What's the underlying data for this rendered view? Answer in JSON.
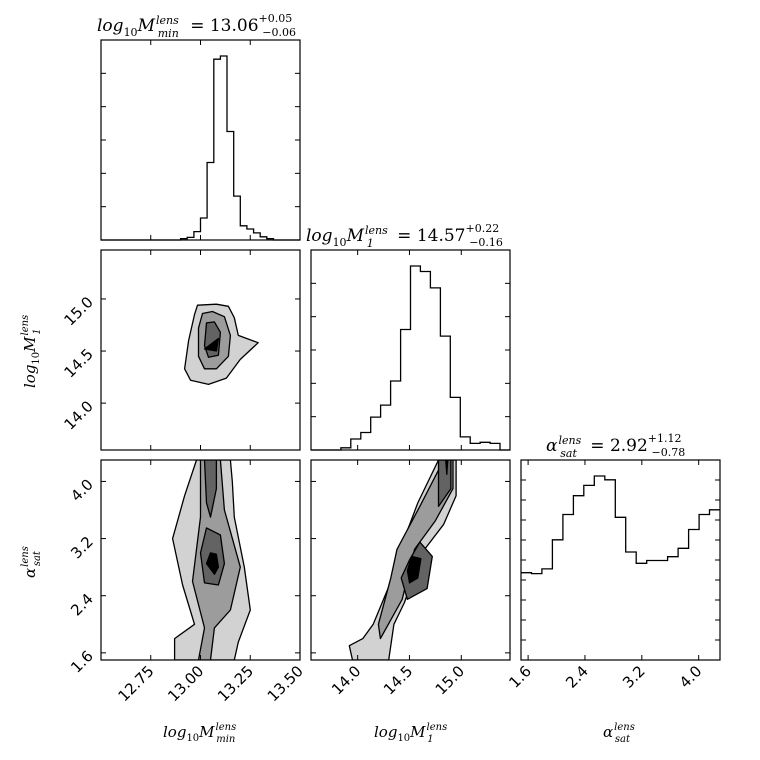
{
  "chart_data": {
    "type": "corner",
    "colors": {
      "stroke": "#000000",
      "level_1": "#d2d2d2",
      "level_2": "#9c9c9c",
      "level_3": "#636363",
      "level_4": "#000000"
    },
    "parameters": [
      {
        "id": "mmin",
        "label": {
          "base": "log",
          "base_sub": "10",
          "sym": "M",
          "sup": "lens",
          "sub": "min"
        }
      },
      {
        "id": "m1",
        "label": {
          "base": "log",
          "base_sub": "10",
          "sym": "M",
          "sup": "lens",
          "sub": "1"
        }
      },
      {
        "id": "alpha",
        "label": {
          "base": "",
          "base_sub": "",
          "sym": "α",
          "sup": "lens",
          "sub": "sat"
        }
      }
    ],
    "titles": [
      {
        "value": "13.06",
        "plus": "+0.05",
        "minus": "−0.06"
      },
      {
        "value": "14.57",
        "plus": "+0.22",
        "minus": "−0.16"
      },
      {
        "value": "2.92",
        "plus": "+1.12",
        "minus": "−0.78"
      }
    ],
    "ticks": {
      "mmin_x": [
        "12.75",
        "13.00",
        "13.25",
        "13.50"
      ],
      "m1_x": [
        "14.0",
        "14.5",
        "15.0"
      ],
      "m1_y": [
        "15.0",
        "14.5",
        "14.0"
      ],
      "alpha_x": [
        "1.6",
        "2.4",
        "3.2",
        "4.0"
      ],
      "alpha_y": [
        "4.0",
        "3.2",
        "2.4",
        "1.6"
      ]
    },
    "axis_ranges": {
      "mmin": [
        12.5,
        13.5
      ],
      "m1": [
        13.55,
        15.47
      ],
      "alpha": [
        1.5,
        4.3
      ]
    },
    "histograms": {
      "mmin": {
        "x_range": [
          12.5,
          13.5
        ],
        "counts": [
          0,
          0,
          0,
          0,
          0,
          0,
          0,
          0,
          0,
          0,
          0,
          0,
          2,
          4,
          13,
          34,
          120,
          280,
          285,
          168,
          68,
          22,
          17,
          11,
          5,
          2,
          0,
          0,
          0,
          0
        ]
      },
      "m1": {
        "x_range": [
          13.55,
          15.47
        ],
        "counts": [
          0,
          0,
          0,
          2,
          10,
          16,
          30,
          41,
          63,
          110,
          168,
          163,
          148,
          104,
          48,
          12,
          6,
          7,
          6,
          0
        ]
      },
      "alpha": {
        "x_range": [
          1.5,
          4.3
        ],
        "counts": [
          93,
          92,
          97,
          128,
          155,
          175,
          186,
          196,
          192,
          152,
          115,
          103,
          106,
          106,
          110,
          119,
          139,
          155,
          160
        ]
      }
    },
    "contour_levels": [
      {
        "level": 1,
        "panel": "m1_vs_mmin",
        "x": [
          12.985,
          12.97,
          12.94,
          12.92,
          12.95,
          13.04,
          13.13,
          13.2,
          13.29,
          13.19,
          13.17,
          13.14,
          13.08,
          12.985
        ],
        "y": [
          14.94,
          14.85,
          14.6,
          14.33,
          14.22,
          14.18,
          14.24,
          14.42,
          14.58,
          14.65,
          14.82,
          14.93,
          14.95,
          14.94
        ]
      },
      {
        "level": 2,
        "panel": "m1_vs_mmin",
        "x": [
          13.01,
          12.99,
          12.99,
          13.02,
          13.08,
          13.14,
          13.15,
          13.12,
          13.06,
          13.01
        ],
        "y": [
          14.86,
          14.72,
          14.45,
          14.33,
          14.33,
          14.45,
          14.65,
          14.83,
          14.88,
          14.86
        ]
      },
      {
        "level": 3,
        "panel": "m1_vs_mmin",
        "x": [
          13.03,
          13.02,
          13.04,
          13.09,
          13.1,
          13.07,
          13.03
        ],
        "y": [
          14.77,
          14.55,
          14.44,
          14.46,
          14.68,
          14.78,
          14.77
        ]
      },
      {
        "level": 4,
        "panel": "m1_vs_mmin",
        "x": [
          13.02,
          13.08,
          13.09,
          13.02
        ],
        "y": [
          14.52,
          14.5,
          14.62,
          14.52
        ]
      },
      {
        "level": 1,
        "panel": "alpha_vs_mmin",
        "x": [
          12.98,
          13.15,
          13.16,
          13.17,
          13.22,
          13.25,
          13.19,
          13.17,
          13.15,
          12.87,
          12.87,
          12.97,
          12.91,
          12.86,
          12.92,
          12.98
        ],
        "y": [
          4.3,
          4.3,
          4.0,
          3.5,
          2.8,
          2.2,
          1.75,
          1.5,
          1.5,
          1.5,
          1.8,
          2.0,
          2.55,
          3.2,
          3.8,
          4.3
        ]
      },
      {
        "level": 2,
        "panel": "alpha_vs_mmin",
        "x": [
          13.0,
          13.1,
          13.12,
          13.15,
          13.2,
          13.15,
          13.07,
          13.05,
          12.99,
          13.02,
          12.96,
          13.0,
          13.0
        ],
        "y": [
          4.3,
          4.3,
          3.6,
          3.3,
          2.8,
          2.2,
          1.95,
          1.5,
          1.5,
          1.95,
          2.6,
          3.5,
          4.3
        ]
      },
      {
        "level": 3,
        "panel": "alpha_vs_mmin",
        "x": [
          13.02,
          13.08,
          13.08,
          13.05,
          13.03,
          13.02
        ],
        "y": [
          4.3,
          4.3,
          3.9,
          3.5,
          3.7,
          4.3
        ]
      },
      {
        "level": 3,
        "panel": "alpha_vs_mmin",
        "x": [
          13.03,
          13.1,
          13.12,
          13.09,
          13.02,
          13.0,
          13.03
        ],
        "y": [
          3.35,
          3.25,
          2.85,
          2.55,
          2.58,
          3.0,
          3.35
        ]
      },
      {
        "level": 4,
        "panel": "alpha_vs_mmin",
        "x": [
          13.05,
          13.08,
          13.09,
          13.07,
          13.03,
          13.05
        ],
        "y": [
          3.0,
          2.98,
          2.8,
          2.7,
          2.85,
          3.0
        ]
      },
      {
        "level": 1,
        "panel": "alpha_vs_m1",
        "x": [
          14.78,
          14.95,
          14.95,
          14.83,
          14.62,
          14.45,
          14.35,
          14.3,
          14.15,
          13.95,
          13.92,
          14.05,
          14.15,
          14.35,
          14.45,
          14.58,
          14.78
        ],
        "y": [
          4.3,
          4.3,
          3.8,
          3.4,
          3.0,
          2.3,
          2.0,
          1.5,
          1.5,
          1.5,
          1.7,
          1.8,
          2.0,
          2.7,
          3.2,
          3.7,
          4.3
        ]
      },
      {
        "level": 2,
        "panel": "alpha_vs_m1",
        "x": [
          14.83,
          14.92,
          14.92,
          14.75,
          14.55,
          14.43,
          14.22,
          14.2,
          14.32,
          14.38,
          14.6,
          14.83
        ],
        "y": [
          4.3,
          4.3,
          3.9,
          3.45,
          3.05,
          2.35,
          1.8,
          2.0,
          2.65,
          3.05,
          3.65,
          4.3
        ]
      },
      {
        "level": 3,
        "panel": "alpha_vs_m1",
        "x": [
          14.78,
          14.9,
          14.9,
          14.78,
          14.78
        ],
        "y": [
          4.3,
          4.3,
          3.9,
          3.65,
          4.3
        ]
      },
      {
        "level": 3,
        "panel": "alpha_vs_m1",
        "x": [
          14.6,
          14.72,
          14.67,
          14.48,
          14.42,
          14.5,
          14.6
        ],
        "y": [
          3.15,
          2.95,
          2.5,
          2.35,
          2.65,
          2.9,
          3.15
        ]
      },
      {
        "level": 4,
        "panel": "alpha_vs_m1",
        "x": [
          14.52,
          14.61,
          14.58,
          14.5,
          14.48,
          14.52
        ],
        "y": [
          2.95,
          2.92,
          2.65,
          2.58,
          2.75,
          2.95
        ]
      },
      {
        "level": 4,
        "panel": "alpha_vs_m1",
        "x": [
          14.85,
          14.87,
          14.86,
          14.85
        ],
        "y": [
          4.3,
          4.3,
          4.1,
          4.3
        ]
      }
    ]
  }
}
